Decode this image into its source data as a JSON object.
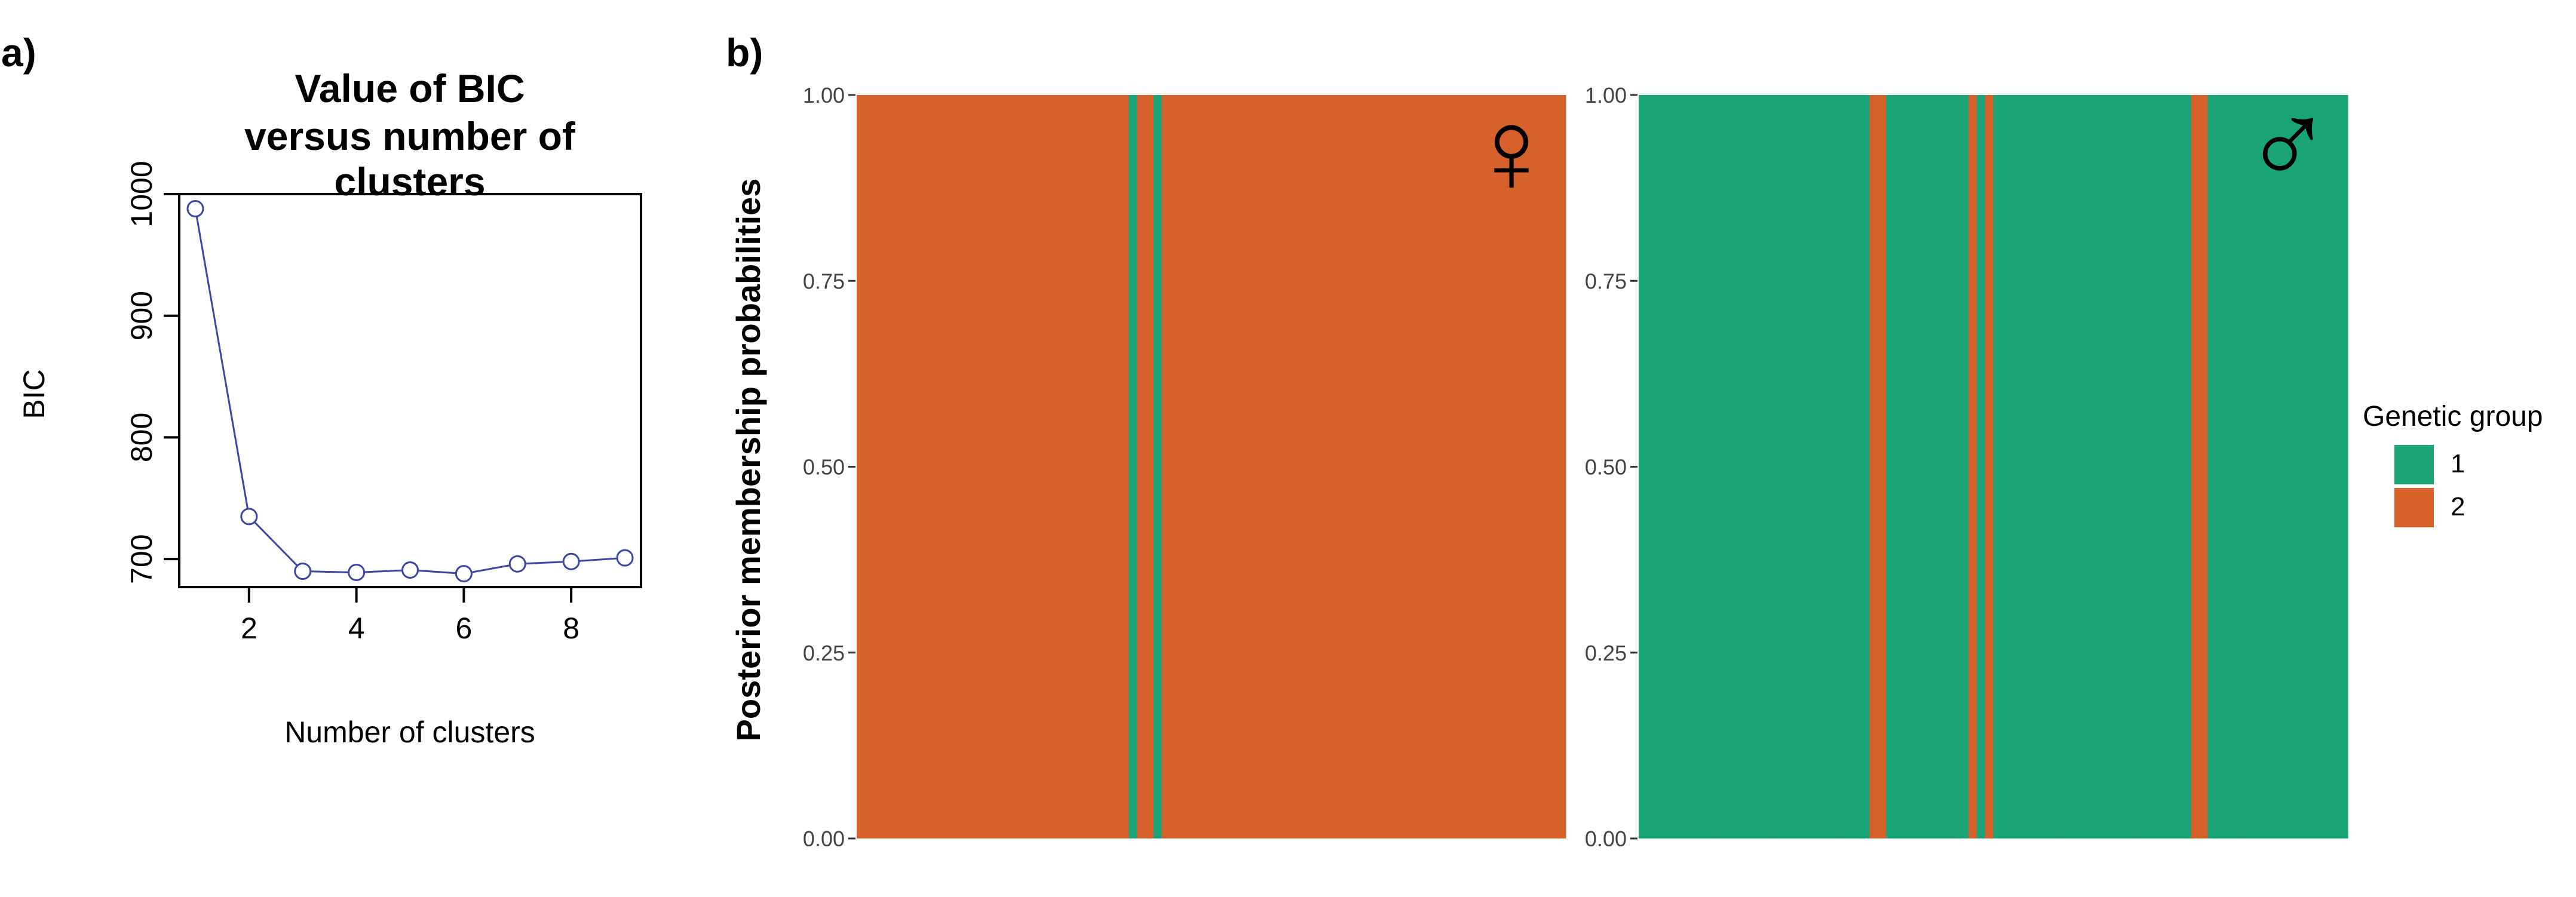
{
  "panels": {
    "a_label": "a)",
    "b_label": "b)"
  },
  "chart_data": [
    {
      "type": "line",
      "title_line1": "Value of BIC",
      "title_line2": "versus number of clusters",
      "xlabel": "Number of clusters",
      "ylabel": "BIC",
      "x": [
        1,
        2,
        3,
        4,
        5,
        6,
        7,
        8,
        9
      ],
      "values": [
        988,
        735,
        690,
        689,
        691,
        688,
        696,
        698,
        701
      ],
      "xticks": [
        2,
        4,
        6,
        8
      ],
      "yticks": [
        700,
        800,
        900,
        1000
      ],
      "xlim": [
        0.7,
        9.3
      ],
      "ylim": [
        677,
        1000
      ],
      "line_color": "#3a46a8",
      "grid": false
    },
    {
      "type": "bar",
      "stacked": true,
      "sex": "female",
      "ylabel": "Posterior membership probabilities",
      "yticks": [
        "0.00",
        "0.25",
        "0.50",
        "0.75",
        "1.00"
      ],
      "ylim": [
        0,
        1
      ],
      "n_individuals": 86,
      "group1_individuals": [
        33,
        36
      ],
      "default_group": 2,
      "symbol": "♀"
    },
    {
      "type": "bar",
      "stacked": true,
      "sex": "male",
      "yticks": [
        "0.00",
        "0.25",
        "0.50",
        "0.75",
        "1.00"
      ],
      "ylim": [
        0,
        1
      ],
      "n_individuals": 86,
      "group2_individuals": [
        28,
        29,
        40,
        42,
        67,
        68
      ],
      "default_group": 1,
      "symbol": "♂"
    }
  ],
  "legend": {
    "title": "Genetic group",
    "items": [
      {
        "label": "1",
        "color": "#1aa377"
      },
      {
        "label": "2",
        "color": "#d6612a"
      }
    ],
    "placement": "right"
  }
}
